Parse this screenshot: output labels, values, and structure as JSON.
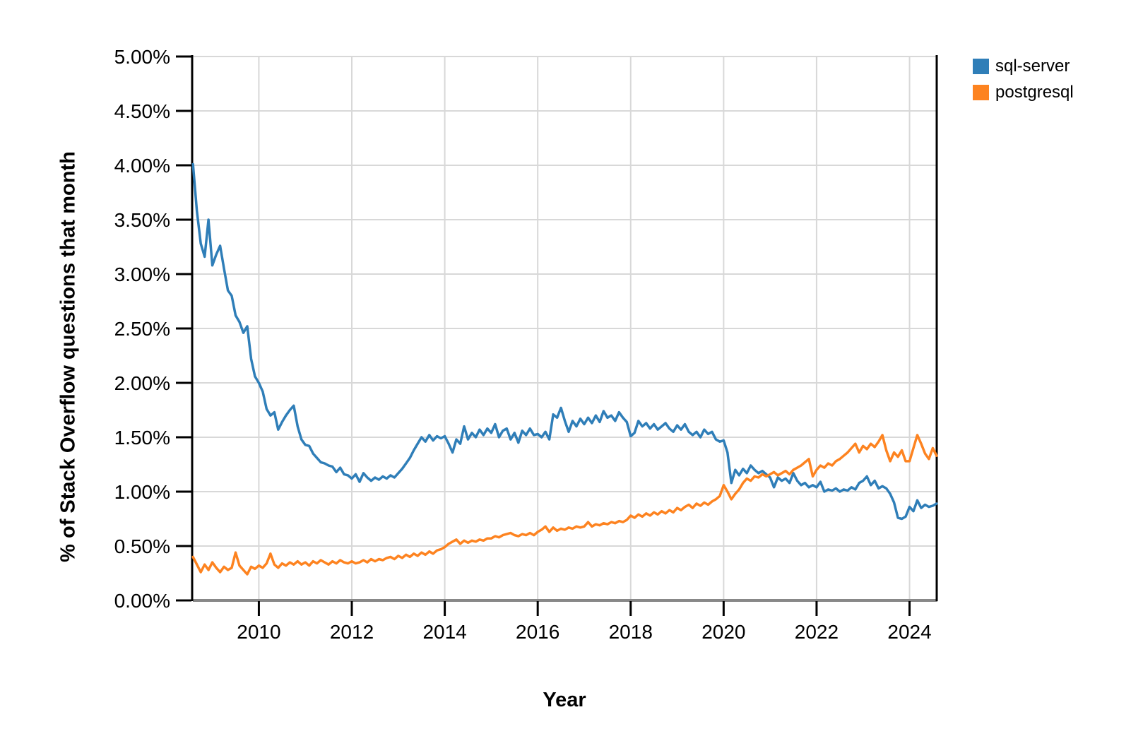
{
  "chart_data": {
    "type": "line",
    "title": "",
    "xlabel": "Year",
    "ylabel": "% of Stack Overflow questions that month",
    "xlim": [
      2008.58,
      2024.6
    ],
    "ylim": [
      0,
      5
    ],
    "grid": true,
    "legend_position": "top-right",
    "x_start": 2008.5833,
    "x_step_years": 0.0833333,
    "x_ticks": [
      {
        "label": "2010",
        "value": 2010
      },
      {
        "label": "2012",
        "value": 2012
      },
      {
        "label": "2014",
        "value": 2014
      },
      {
        "label": "2016",
        "value": 2016
      },
      {
        "label": "2018",
        "value": 2018
      },
      {
        "label": "2020",
        "value": 2020
      },
      {
        "label": "2022",
        "value": 2022
      },
      {
        "label": "2024",
        "value": 2024
      }
    ],
    "y_ticks": [
      {
        "label": "5.00%",
        "value": 5.0
      },
      {
        "label": "4.50%",
        "value": 4.5
      },
      {
        "label": "4.00%",
        "value": 4.0
      },
      {
        "label": "3.50%",
        "value": 3.5
      },
      {
        "label": "3.00%",
        "value": 3.0
      },
      {
        "label": "2.50%",
        "value": 2.5
      },
      {
        "label": "2.00%",
        "value": 2.0
      },
      {
        "label": "1.50%",
        "value": 1.5
      },
      {
        "label": "1.00%",
        "value": 1.0
      },
      {
        "label": "0.50%",
        "value": 0.5
      },
      {
        "label": "0.00%",
        "value": 0.0
      }
    ],
    "series": [
      {
        "name": "sql-server",
        "color": "#2f7eb8",
        "values": [
          4.01,
          3.58,
          3.28,
          3.16,
          3.5,
          3.08,
          3.18,
          3.26,
          3.05,
          2.85,
          2.8,
          2.62,
          2.56,
          2.46,
          2.52,
          2.22,
          2.06,
          2.0,
          1.92,
          1.76,
          1.7,
          1.73,
          1.57,
          1.64,
          1.7,
          1.75,
          1.79,
          1.6,
          1.48,
          1.43,
          1.42,
          1.35,
          1.31,
          1.27,
          1.26,
          1.24,
          1.23,
          1.18,
          1.22,
          1.16,
          1.15,
          1.12,
          1.16,
          1.09,
          1.17,
          1.13,
          1.1,
          1.13,
          1.11,
          1.14,
          1.12,
          1.15,
          1.13,
          1.17,
          1.21,
          1.26,
          1.31,
          1.38,
          1.44,
          1.5,
          1.46,
          1.52,
          1.47,
          1.51,
          1.49,
          1.51,
          1.44,
          1.36,
          1.48,
          1.44,
          1.6,
          1.48,
          1.54,
          1.5,
          1.57,
          1.52,
          1.58,
          1.54,
          1.62,
          1.5,
          1.56,
          1.58,
          1.48,
          1.54,
          1.45,
          1.56,
          1.52,
          1.58,
          1.52,
          1.53,
          1.5,
          1.55,
          1.48,
          1.71,
          1.68,
          1.77,
          1.65,
          1.55,
          1.65,
          1.6,
          1.67,
          1.62,
          1.68,
          1.63,
          1.7,
          1.64,
          1.74,
          1.68,
          1.7,
          1.65,
          1.73,
          1.68,
          1.64,
          1.51,
          1.54,
          1.65,
          1.6,
          1.63,
          1.58,
          1.62,
          1.57,
          1.6,
          1.63,
          1.58,
          1.55,
          1.61,
          1.57,
          1.62,
          1.55,
          1.52,
          1.55,
          1.5,
          1.57,
          1.53,
          1.55,
          1.48,
          1.46,
          1.47,
          1.36,
          1.08,
          1.2,
          1.15,
          1.21,
          1.17,
          1.24,
          1.2,
          1.17,
          1.19,
          1.16,
          1.13,
          1.04,
          1.13,
          1.1,
          1.12,
          1.08,
          1.17,
          1.1,
          1.06,
          1.08,
          1.04,
          1.06,
          1.04,
          1.09,
          1.0,
          1.02,
          1.01,
          1.03,
          1.0,
          1.02,
          1.01,
          1.04,
          1.02,
          1.08,
          1.1,
          1.14,
          1.06,
          1.1,
          1.03,
          1.05,
          1.03,
          0.98,
          0.9,
          0.76,
          0.75,
          0.77,
          0.86,
          0.82,
          0.92,
          0.85,
          0.88,
          0.86,
          0.87,
          0.89
        ]
      },
      {
        "name": "postgresql",
        "color": "#fd8320",
        "values": [
          0.4,
          0.33,
          0.26,
          0.33,
          0.28,
          0.35,
          0.3,
          0.26,
          0.31,
          0.28,
          0.3,
          0.44,
          0.32,
          0.28,
          0.24,
          0.31,
          0.29,
          0.32,
          0.3,
          0.34,
          0.43,
          0.33,
          0.3,
          0.34,
          0.32,
          0.35,
          0.33,
          0.36,
          0.33,
          0.35,
          0.32,
          0.36,
          0.34,
          0.37,
          0.35,
          0.33,
          0.36,
          0.34,
          0.37,
          0.35,
          0.34,
          0.36,
          0.34,
          0.35,
          0.37,
          0.35,
          0.38,
          0.36,
          0.38,
          0.37,
          0.39,
          0.4,
          0.38,
          0.41,
          0.39,
          0.42,
          0.4,
          0.43,
          0.41,
          0.44,
          0.42,
          0.45,
          0.43,
          0.46,
          0.47,
          0.49,
          0.52,
          0.54,
          0.56,
          0.52,
          0.55,
          0.53,
          0.55,
          0.54,
          0.56,
          0.55,
          0.57,
          0.57,
          0.59,
          0.58,
          0.6,
          0.61,
          0.62,
          0.6,
          0.59,
          0.61,
          0.6,
          0.62,
          0.6,
          0.63,
          0.65,
          0.68,
          0.63,
          0.67,
          0.64,
          0.66,
          0.65,
          0.67,
          0.66,
          0.68,
          0.67,
          0.68,
          0.72,
          0.68,
          0.7,
          0.69,
          0.71,
          0.7,
          0.72,
          0.71,
          0.73,
          0.72,
          0.74,
          0.78,
          0.76,
          0.79,
          0.77,
          0.8,
          0.78,
          0.81,
          0.79,
          0.82,
          0.8,
          0.83,
          0.81,
          0.85,
          0.83,
          0.86,
          0.88,
          0.85,
          0.89,
          0.87,
          0.9,
          0.88,
          0.91,
          0.93,
          0.96,
          1.06,
          1.0,
          0.93,
          0.98,
          1.02,
          1.08,
          1.12,
          1.1,
          1.14,
          1.13,
          1.16,
          1.14,
          1.16,
          1.18,
          1.15,
          1.17,
          1.19,
          1.16,
          1.2,
          1.22,
          1.24,
          1.27,
          1.3,
          1.14,
          1.2,
          1.24,
          1.22,
          1.26,
          1.24,
          1.28,
          1.3,
          1.33,
          1.36,
          1.4,
          1.44,
          1.36,
          1.42,
          1.39,
          1.44,
          1.41,
          1.46,
          1.52,
          1.38,
          1.28,
          1.36,
          1.32,
          1.38,
          1.28,
          1.28,
          1.4,
          1.52,
          1.44,
          1.35,
          1.3,
          1.4,
          1.33
        ]
      }
    ]
  },
  "style": {
    "grid_color": "#d8d8d8",
    "axis_color_left": "#000000",
    "axis_color_right": "#000000",
    "axis_color_bottom": "#888888",
    "tick_color": "#000000",
    "tick_label_color": "#000000"
  }
}
